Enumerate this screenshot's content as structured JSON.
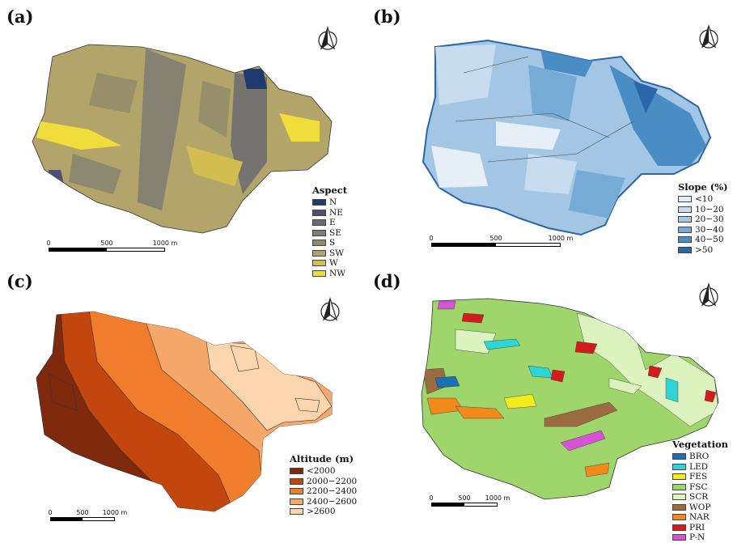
{
  "panels": [
    {
      "label": "(a)",
      "legend": {
        "title": "Aspect",
        "items": [
          {
            "label": "N",
            "color": "#1f3a6e"
          },
          {
            "label": "NE",
            "color": "#4d5170"
          },
          {
            "label": "E",
            "color": "#6a6b70"
          },
          {
            "label": "SE",
            "color": "#7d7d74"
          },
          {
            "label": "S",
            "color": "#8e8a6a"
          },
          {
            "label": "SW",
            "color": "#b3a46a"
          },
          {
            "label": "W",
            "color": "#d2bd50"
          },
          {
            "label": "NW",
            "color": "#f0dc3a"
          }
        ]
      },
      "scale": {
        "ticks": [
          "0",
          "500",
          "1000 m"
        ]
      }
    },
    {
      "label": "(b)",
      "legend": {
        "title": "Slope (%)",
        "items": [
          {
            "label": "<10",
            "color": "#e6eff8"
          },
          {
            "label": "10−20",
            "color": "#c7dcef"
          },
          {
            "label": "20−30",
            "color": "#a2c6e4"
          },
          {
            "label": "30−40",
            "color": "#76abd6"
          },
          {
            "label": "40−50",
            "color": "#4a8cc4"
          },
          {
            "label": ">50",
            "color": "#2a66a9"
          }
        ]
      },
      "scale": {
        "ticks": [
          "0",
          "500",
          "1000 m"
        ]
      }
    },
    {
      "label": "(c)",
      "legend": {
        "title": "Altitude (m)",
        "items": [
          {
            "label": "<2000",
            "color": "#7f2a0c"
          },
          {
            "label": "2000−2200",
            "color": "#c4460f"
          },
          {
            "label": "2200−2400",
            "color": "#ef7d2c"
          },
          {
            "label": "2400−2600",
            "color": "#f6a76a"
          },
          {
            "label": ">2600",
            "color": "#fbd5ad"
          }
        ]
      },
      "scale": {
        "ticks": [
          "0",
          "500",
          "1000 m"
        ]
      }
    },
    {
      "label": "(d)",
      "legend": {
        "title": "Vegetation",
        "items": [
          {
            "label": "BRO",
            "color": "#1c6fb7"
          },
          {
            "label": "LED",
            "color": "#2fd4d6"
          },
          {
            "label": "FES",
            "color": "#f3ec1d"
          },
          {
            "label": "FSC",
            "color": "#9ed66c"
          },
          {
            "label": "SCR",
            "color": "#dcf3c0"
          },
          {
            "label": "WOP",
            "color": "#9c6b3f"
          },
          {
            "label": "NAR",
            "color": "#f28a1a"
          },
          {
            "label": "PRI",
            "color": "#d31c1c"
          },
          {
            "label": "P-N",
            "color": "#d653d6"
          }
        ]
      },
      "scale": {
        "ticks": [
          "0",
          "500",
          "1000 m"
        ]
      }
    }
  ]
}
